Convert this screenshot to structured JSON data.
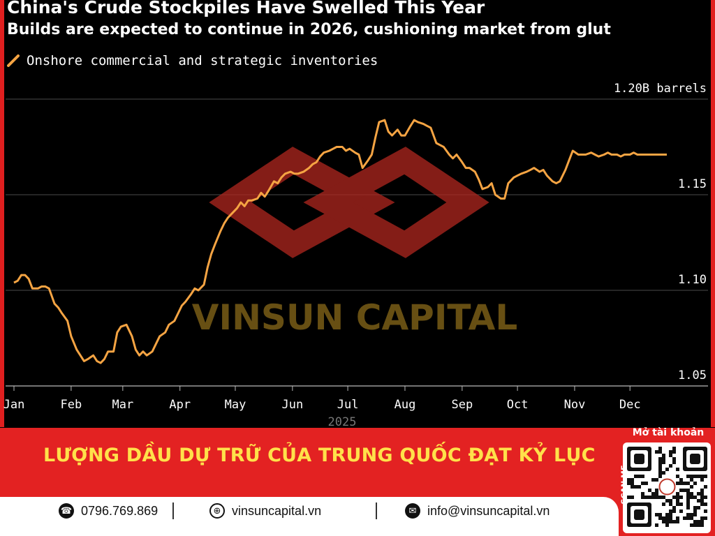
{
  "chart_data": {
    "type": "line",
    "title": "China's Crude Stockpiles Have Swelled This Year",
    "subtitle": "Builds are expected to continue in 2026, cushioning market from glut",
    "series": [
      {
        "name": "Onshore commercial and strategic inventories",
        "color": "#f5a443",
        "x": [
          1,
          3,
          5,
          7,
          9,
          11,
          14,
          16,
          18,
          20,
          23,
          25,
          27,
          30,
          32,
          35,
          37,
          39,
          41,
          44,
          46,
          48,
          50,
          52,
          55,
          57,
          59,
          62,
          65,
          67,
          69,
          71,
          73,
          76,
          78,
          80,
          83,
          85,
          88,
          90,
          92,
          94,
          97,
          99,
          101,
          104,
          106,
          108,
          110,
          113,
          115,
          117,
          120,
          122,
          124,
          126,
          128,
          130,
          133,
          135,
          137,
          139,
          142,
          144,
          146,
          148,
          151,
          153,
          155,
          158,
          161,
          163,
          165,
          167,
          169,
          172,
          174,
          176,
          179,
          181,
          183,
          186,
          188,
          190,
          193,
          195,
          197,
          199,
          202,
          204,
          206,
          209,
          211,
          213,
          216,
          218,
          220,
          223,
          225,
          227,
          230,
          232,
          234,
          237,
          239,
          241,
          244,
          246,
          248,
          251,
          253,
          255,
          258,
          260,
          262,
          265,
          267,
          269,
          272,
          274,
          276,
          279,
          281,
          283,
          286,
          288,
          290,
          293,
          295,
          297,
          300,
          302,
          304,
          307,
          309,
          311,
          314,
          316,
          318,
          321,
          323,
          325,
          328,
          330,
          332,
          335,
          337,
          339,
          342,
          344,
          346,
          349,
          351,
          353,
          355
        ],
        "values": [
          1.104,
          1.105,
          1.108,
          1.108,
          1.106,
          1.101,
          1.101,
          1.102,
          1.102,
          1.101,
          1.093,
          1.091,
          1.088,
          1.084,
          1.076,
          1.069,
          1.066,
          1.063,
          1.064,
          1.066,
          1.063,
          1.062,
          1.064,
          1.068,
          1.068,
          1.078,
          1.081,
          1.082,
          1.076,
          1.069,
          1.066,
          1.068,
          1.066,
          1.068,
          1.072,
          1.076,
          1.078,
          1.082,
          1.084,
          1.088,
          1.092,
          1.094,
          1.098,
          1.101,
          1.1,
          1.103,
          1.112,
          1.119,
          1.124,
          1.131,
          1.135,
          1.138,
          1.141,
          1.143,
          1.146,
          1.144,
          1.147,
          1.147,
          1.148,
          1.151,
          1.149,
          1.152,
          1.157,
          1.156,
          1.159,
          1.161,
          1.162,
          1.161,
          1.161,
          1.162,
          1.164,
          1.166,
          1.167,
          1.17,
          1.172,
          1.173,
          1.174,
          1.175,
          1.175,
          1.173,
          1.174,
          1.172,
          1.171,
          1.164,
          1.168,
          1.171,
          1.18,
          1.188,
          1.189,
          1.183,
          1.181,
          1.184,
          1.181,
          1.181,
          1.186,
          1.189,
          1.188,
          1.187,
          1.186,
          1.185,
          1.177,
          1.176,
          1.175,
          1.171,
          1.169,
          1.171,
          1.167,
          1.164,
          1.164,
          1.162,
          1.158,
          1.153,
          1.154,
          1.156,
          1.15,
          1.148,
          1.148,
          1.156,
          1.159,
          1.16,
          1.161,
          1.162,
          1.163,
          1.164,
          1.162,
          1.163,
          1.16,
          1.157,
          1.156,
          1.157,
          1.163,
          1.168,
          1.173,
          1.171,
          1.171,
          1.171,
          1.172,
          1.171,
          1.17,
          1.171,
          1.172,
          1.171,
          1.171,
          1.17,
          1.171,
          1.171,
          1.172,
          1.171,
          1.171,
          1.171,
          1.171,
          1.171,
          1.171,
          1.171,
          1.171
        ]
      }
    ],
    "x_ticks": [
      {
        "day": 1,
        "label": "Jan"
      },
      {
        "day": 32,
        "label": "Feb"
      },
      {
        "day": 60,
        "label": "Mar"
      },
      {
        "day": 91,
        "label": "Apr"
      },
      {
        "day": 121,
        "label": "May"
      },
      {
        "day": 152,
        "label": "Jun"
      },
      {
        "day": 182,
        "label": "Jul"
      },
      {
        "day": 213,
        "label": "Aug"
      },
      {
        "day": 244,
        "label": "Sep"
      },
      {
        "day": 274,
        "label": "Oct"
      },
      {
        "day": 305,
        "label": "Nov"
      },
      {
        "day": 335,
        "label": "Dec"
      }
    ],
    "x_year_label": "2025",
    "y_ticks": [
      {
        "value": 1.2,
        "label": "1.20B barrels"
      },
      {
        "value": 1.15,
        "label": "1.15"
      },
      {
        "value": 1.1,
        "label": "1.10"
      },
      {
        "value": 1.05,
        "label": "1.05"
      }
    ],
    "ylim": [
      1.05,
      1.2
    ],
    "xlim": [
      1,
      365
    ],
    "grid": true,
    "legend_position": "top-left"
  },
  "watermark": {
    "text": "VINSUN CAPITAL",
    "logo_color": "#c0392b",
    "text_color": "#8a6a1a"
  },
  "banner": {
    "headline": "LƯỢNG DẦU DỰ TRỮ CỦA TRUNG QUỐC ĐẠT KỶ LỤC",
    "phone": "0796.769.869",
    "website": "vinsuncapital.vn",
    "email": "info@vinsuncapital.vn",
    "qr_title": "Mở tài khoản",
    "scan_me": "SCAN ME",
    "phone_icon": "phone-icon",
    "web_icon": "globe-icon",
    "mail_icon": "mail-icon",
    "accent_color": "#e32222",
    "headline_color": "#ffe14a"
  }
}
